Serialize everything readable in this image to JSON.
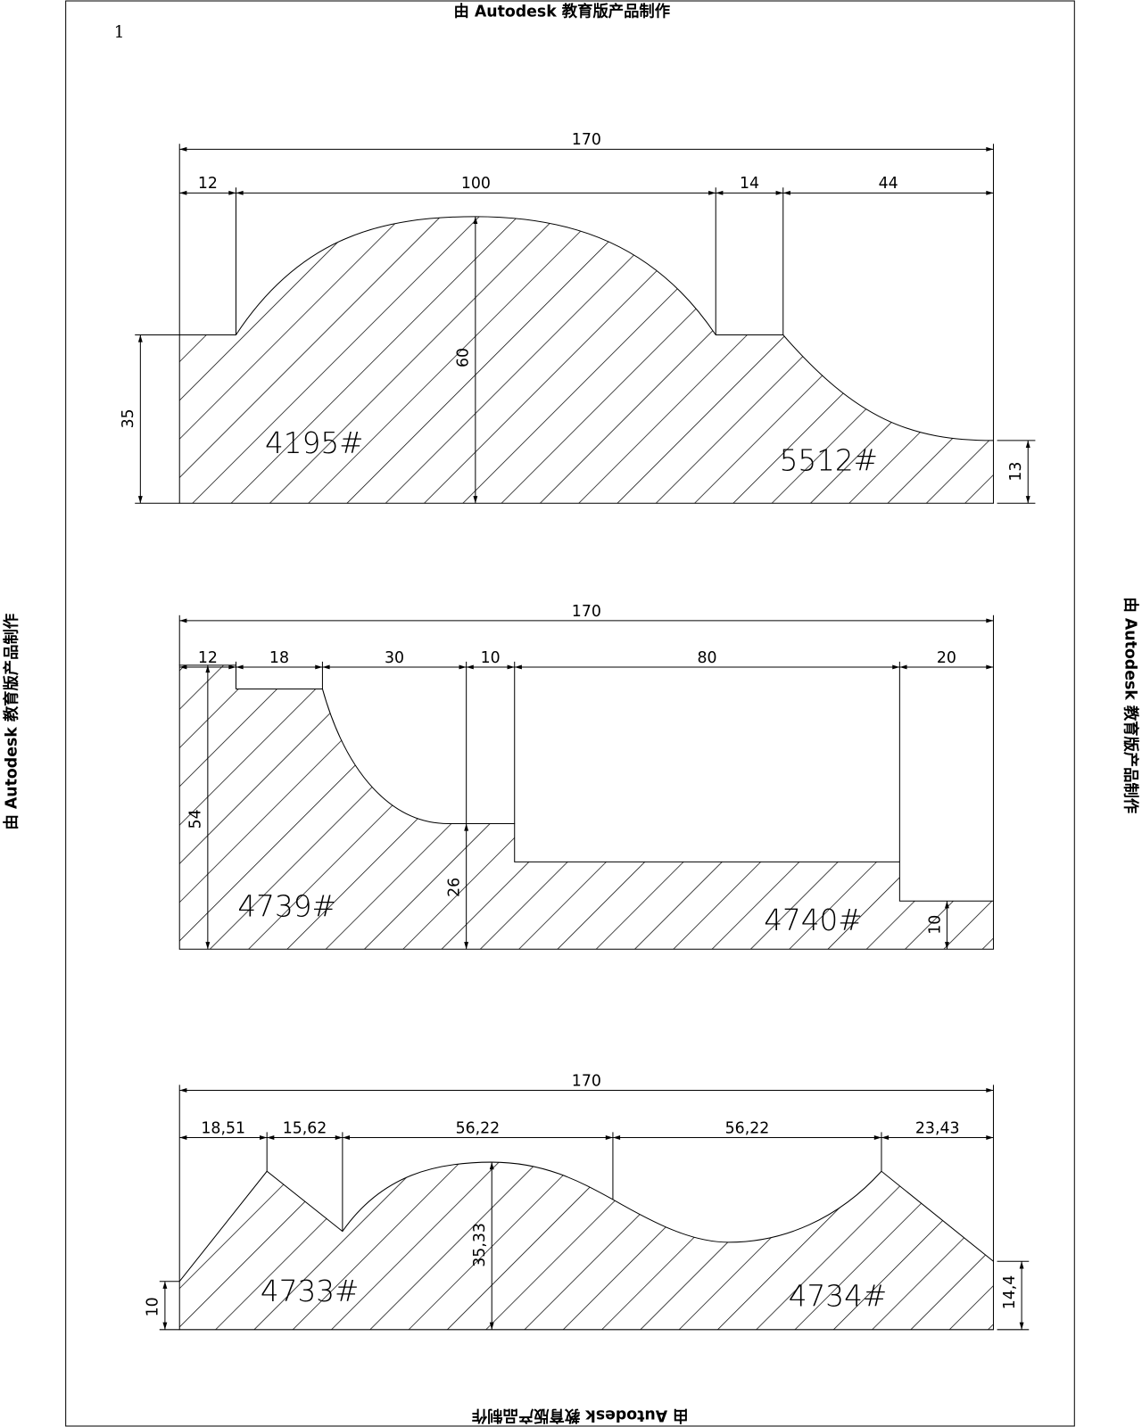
{
  "watermark": {
    "top": "由 Autodesk 教育版产品制作",
    "bottom": "由 Autodesk 教育版产品制作",
    "left": "由 Autodesk 教育版产品制作",
    "right": "由 Autodesk 教育版产品制作"
  },
  "page_number": "1",
  "profiles": [
    {
      "dims": [
        "170",
        "12",
        "100",
        "14",
        "44",
        "60",
        "35",
        "13"
      ],
      "labels": [
        "4195#",
        "5512#"
      ]
    },
    {
      "dims": [
        "170",
        "12",
        "18",
        "30",
        "10",
        "80",
        "20",
        "54",
        "26",
        "10"
      ],
      "labels": [
        "4739#",
        "4740#"
      ]
    },
    {
      "dims": [
        "170",
        "18,51",
        "15,62",
        "56,22",
        "56,22",
        "23,43",
        "35,33",
        "10",
        "14,4"
      ],
      "labels": [
        "4733#",
        "4734#"
      ]
    }
  ]
}
